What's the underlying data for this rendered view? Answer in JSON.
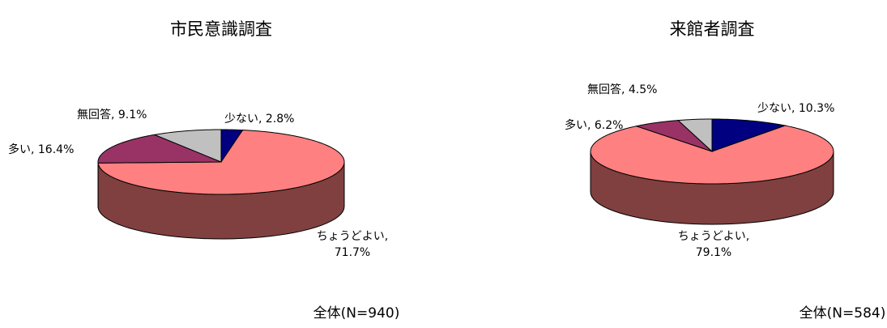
{
  "chart_data": [
    {
      "type": "pie3d",
      "title": "市民意識調査",
      "values": [
        2.8,
        71.7,
        16.4,
        9.1
      ],
      "value_labels": [
        "少ない, 2.8%",
        "ちょうどよい, 71.7%",
        "多い, 16.4%",
        "無回答, 9.1%"
      ],
      "colors": [
        "#000080",
        "#ff8080",
        "#993366",
        "#c0c0c0"
      ],
      "note": "全体(N=940)"
    },
    {
      "type": "pie3d",
      "title": "来館者調査",
      "values": [
        10.3,
        79.1,
        6.2,
        4.5
      ],
      "value_labels": [
        "少ない, 10.3%",
        "ちょうどよい, 79.1%",
        "多い, 6.2%",
        "無回答, 4.5%"
      ],
      "colors": [
        "#000080",
        "#ff8080",
        "#993366",
        "#c0c0c0"
      ],
      "note": "全体(N=584)"
    }
  ]
}
